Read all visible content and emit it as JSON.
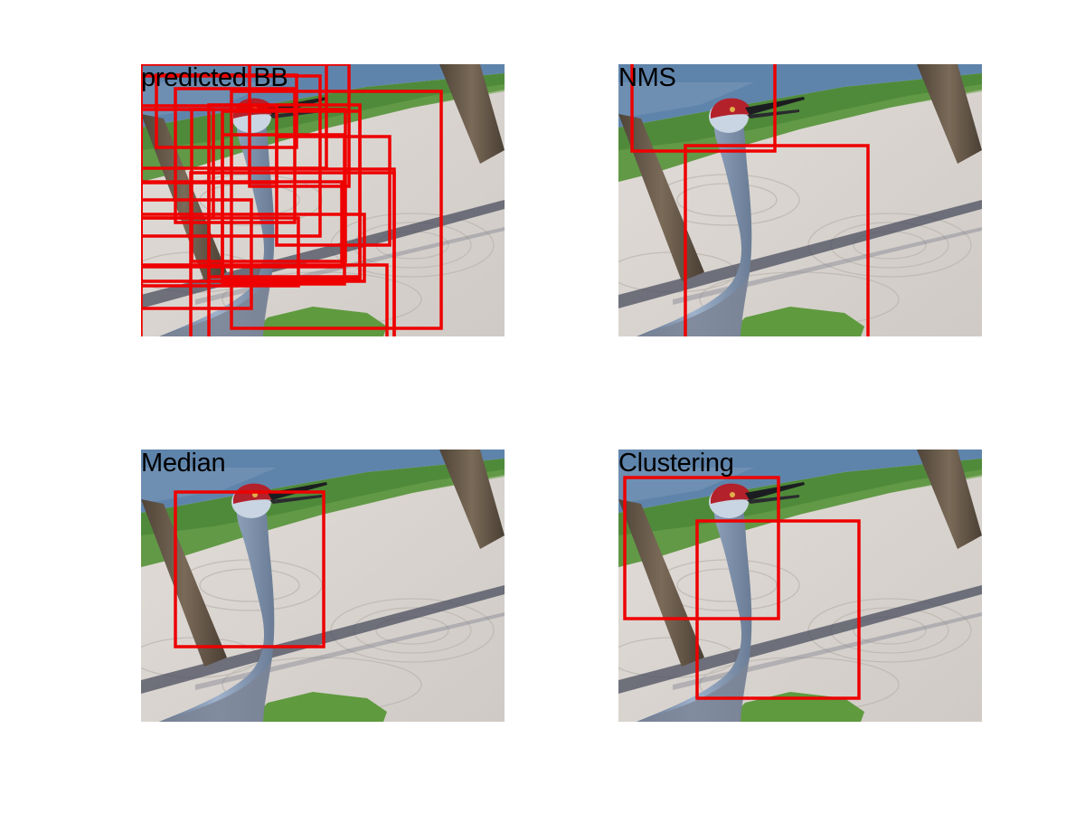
{
  "colors": {
    "box": "#ee0000",
    "sand": "#d9d4cf",
    "grass": "#4f8a3a",
    "water": "#5a7fa6",
    "trunk": "#6d5c4b",
    "neck": "#8a9db8",
    "crown": "#b3212b"
  },
  "panels": [
    {
      "title": "predicted BB",
      "scene_alt": "sandhill crane on sandy golf bunker with palm trunks"
    },
    {
      "title": "NMS",
      "scene_alt": "sandhill crane on sandy golf bunker with palm trunks"
    },
    {
      "title": "Median",
      "scene_alt": "sandhill crane on sandy golf bunker with palm trunks"
    },
    {
      "title": "Clustering",
      "scene_alt": "sandhill crane on sandy golf bunker with palm trunks"
    }
  ]
}
